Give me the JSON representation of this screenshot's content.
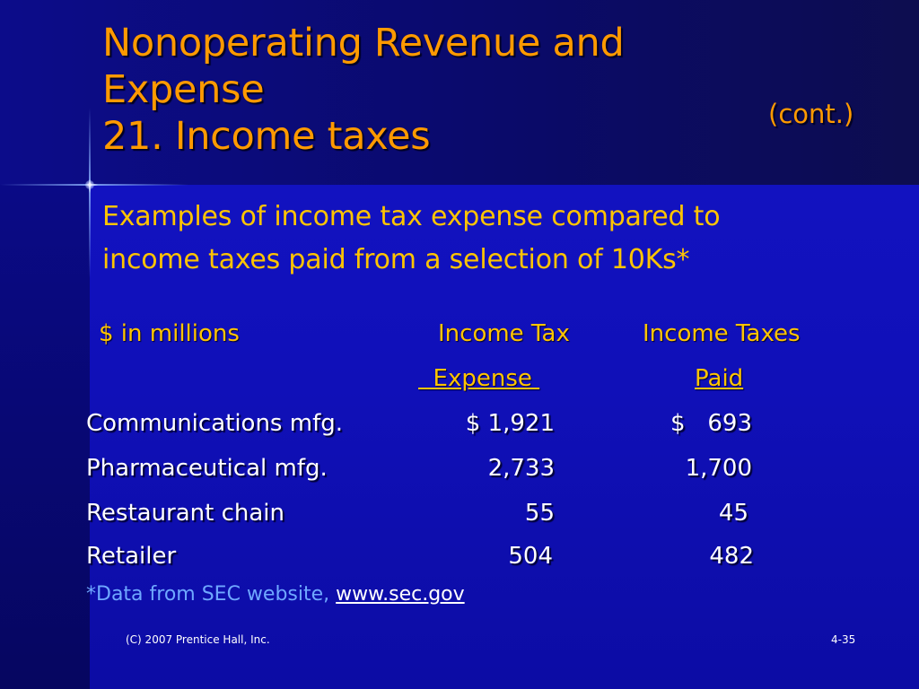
{
  "title": {
    "line1": "Nonoperating Revenue and",
    "line2": "Expense",
    "cont": "(cont.)",
    "line3": "21.  Income taxes"
  },
  "subtitle": {
    "line1": "Examples of income tax expense compared to",
    "line2": "income taxes paid from a selection of 10Ks*"
  },
  "table": {
    "unit_label": "$ in millions",
    "col1_head_line1": "Income Tax",
    "col1_head_line2": "  Expense ",
    "col2_head_line1": "Income Taxes",
    "col2_head_line2": "Paid",
    "rows": [
      {
        "label": "Communications mfg.",
        "expense": "$ 1,921",
        "paid": "$   693"
      },
      {
        "label": "Pharmaceutical mfg.",
        "expense": "2,733",
        "paid": "1,700"
      },
      {
        "label": "Restaurant chain",
        "expense": "55",
        "paid": "45"
      },
      {
        "label": "Retailer",
        "expense": "504",
        "paid": "482"
      }
    ]
  },
  "footnote": {
    "text": "*Data from SEC website, ",
    "link": "www.sec.gov"
  },
  "footer": {
    "copyright": "(C) 2007 Prentice Hall, Inc.",
    "slide_number": "4-35"
  },
  "colors": {
    "title": "#ff9a00",
    "subtitle": "#ffc400",
    "body_text": "#ffffff",
    "footnote": "#6fa8ff",
    "background": "#1010b8"
  }
}
